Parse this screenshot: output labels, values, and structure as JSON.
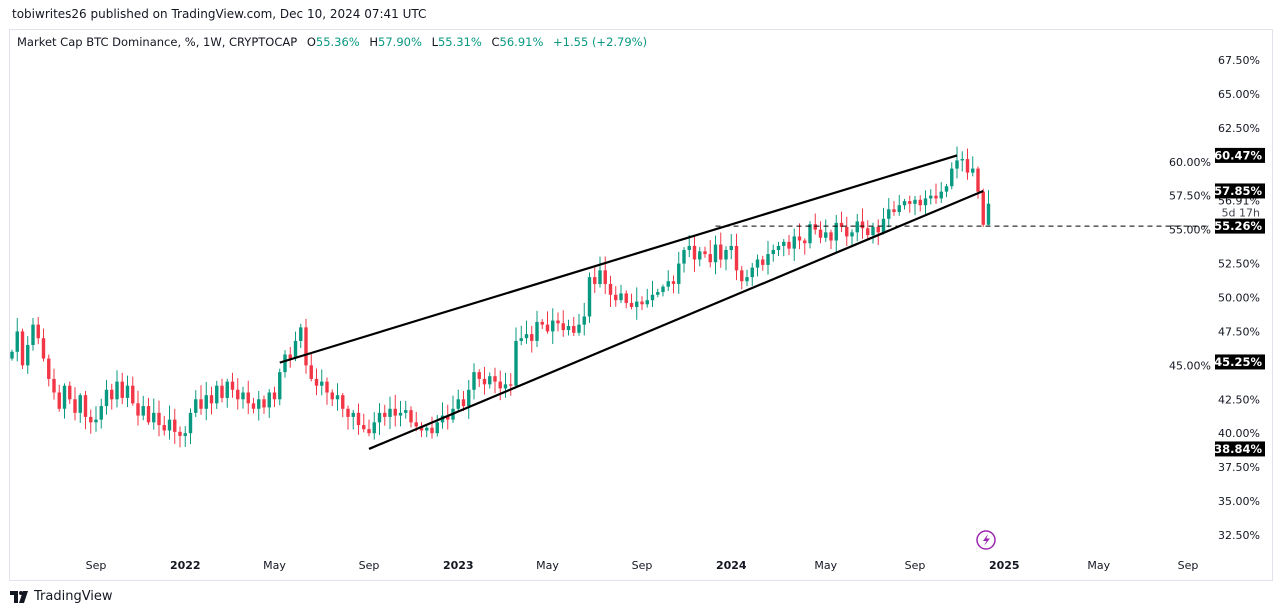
{
  "publisher": "tobiwrites26 published on TradingView.com, Dec 10, 2024 07:41 UTC",
  "legend": {
    "symbol": "Market Cap BTC Dominance, %, 1W, CRYPTOCAP",
    "o_label": "O",
    "o": "55.36%",
    "h_label": "H",
    "h": "57.90%",
    "l_label": "L",
    "l": "55.31%",
    "c_label": "C",
    "c": "56.91%",
    "change": "+1.55 (+2.79%)"
  },
  "brand": "TradingView",
  "colors": {
    "up": "#089981",
    "down": "#f23645",
    "text": "#131722",
    "accent": "#9c27b0"
  },
  "chart_data": {
    "type": "candlestick",
    "title": "Market Cap BTC Dominance, %, 1W, CRYPTOCAP",
    "interval": "1W",
    "ylim": [
      31.5,
      69
    ],
    "y_ticks": [
      "67.50%",
      "65.00%",
      "62.50%",
      "60.00%",
      "57.50%",
      "55.00%",
      "52.50%",
      "50.00%",
      "47.50%",
      "45.00%",
      "42.50%",
      "40.00%",
      "37.50%",
      "35.00%",
      "32.50%"
    ],
    "y_tick_values": [
      67.5,
      65,
      62.5,
      60,
      57.5,
      55,
      52.5,
      50,
      47.5,
      45,
      42.5,
      40,
      37.5,
      35,
      32.5
    ],
    "x_ticks": [
      {
        "label": "Sep",
        "week": 16
      },
      {
        "label": "2022",
        "week": 33
      },
      {
        "label": "May",
        "week": 50
      },
      {
        "label": "Sep",
        "week": 68
      },
      {
        "label": "2023",
        "week": 85
      },
      {
        "label": "May",
        "week": 102
      },
      {
        "label": "Sep",
        "week": 120
      },
      {
        "label": "2024",
        "week": 137
      },
      {
        "label": "May",
        "week": 155
      },
      {
        "label": "Sep",
        "week": 172
      },
      {
        "label": "2025",
        "week": 189
      },
      {
        "label": "May",
        "week": 207
      },
      {
        "label": "Sep",
        "week": 224
      }
    ],
    "first_open": 45.5,
    "closes": [
      46,
      47.5,
      45,
      46.5,
      48,
      47,
      45.5,
      44,
      43,
      41.8,
      43.5,
      42.5,
      41.5,
      42.8,
      41.2,
      40.8,
      41,
      42,
      43.2,
      42.5,
      43.8,
      42.6,
      43.5,
      42.2,
      41.3,
      42,
      40.8,
      41.5,
      40.6,
      40.2,
      41,
      40.1,
      39.8,
      40,
      41.5,
      42.5,
      41.8,
      42.8,
      42.2,
      43.5,
      42.6,
      43.8,
      43.2,
      42.5,
      43,
      42.2,
      41.8,
      42.5,
      41.9,
      43,
      42.5,
      44.5,
      45.8,
      45.5,
      46.8,
      47.8,
      45,
      44,
      43.5,
      43.8,
      43,
      42.5,
      42.8,
      41.8,
      41.2,
      41.5,
      40.6,
      40.3,
      40,
      40.8,
      41.5,
      41.2,
      41.8,
      41.3,
      41.5,
      41.7,
      40.8,
      40.5,
      40.2,
      40.4,
      40,
      40.8,
      41.3,
      41,
      41.8,
      42.5,
      42,
      43.2,
      44.5,
      44,
      43.6,
      44.2,
      43.8,
      43.3,
      43.6,
      43.5,
      46.8,
      47,
      47.3,
      46.8,
      48.2,
      48,
      47.5,
      48.3,
      48.1,
      47.6,
      47.9,
      47.4,
      48,
      48.6,
      51.5,
      51,
      52,
      51,
      50.2,
      49.8,
      50.3,
      49.6,
      49.3,
      49.7,
      49.5,
      49.8,
      50.2,
      50.4,
      50.8,
      51.2,
      51,
      52.5,
      53.5,
      53.8,
      52.8,
      53.4,
      53.2,
      52.6,
      53.9,
      52.8,
      53.5,
      53.8,
      52,
      51.2,
      51.5,
      52.2,
      52.8,
      52.4,
      53.2,
      53.5,
      53.8,
      54.1,
      53.6,
      54.5,
      54.2,
      54,
      55.4,
      55,
      54.4,
      54.8,
      54.2,
      55.5,
      55.2,
      54.5,
      54.8,
      55.6,
      55.1,
      54.6,
      55.2,
      54.8,
      55.8,
      56.5,
      56.3,
      56.8,
      57.1,
      56.9,
      57.2,
      56.8,
      57.3,
      57.5,
      57.3,
      57.8,
      58.2,
      59.5,
      60.1,
      60.2,
      59.2,
      59.5,
      57.8,
      55.36,
      56.91
    ],
    "last_candle": {
      "open": 55.36,
      "high": 57.9,
      "low": 55.31,
      "close": 56.91
    },
    "trendlines": [
      {
        "name": "upper",
        "from": {
          "week": 51,
          "value": 45.2
        },
        "to": {
          "week": 180,
          "value": 60.47
        }
      },
      {
        "name": "lower",
        "from": {
          "week": 68,
          "value": 38.84
        },
        "to": {
          "week": 185,
          "value": 57.85
        }
      }
    ],
    "horizontal_line": {
      "value": 55.26,
      "from_week": 134,
      "style": "dashed"
    },
    "price_labels": [
      "60.47%",
      "57.85%",
      "55.26%",
      "45.25%",
      "38.84%"
    ],
    "price_label_values": [
      60.47,
      57.85,
      55.26,
      45.25,
      38.84
    ],
    "last_price_label": "56.91%",
    "countdown": "5d 17h"
  }
}
